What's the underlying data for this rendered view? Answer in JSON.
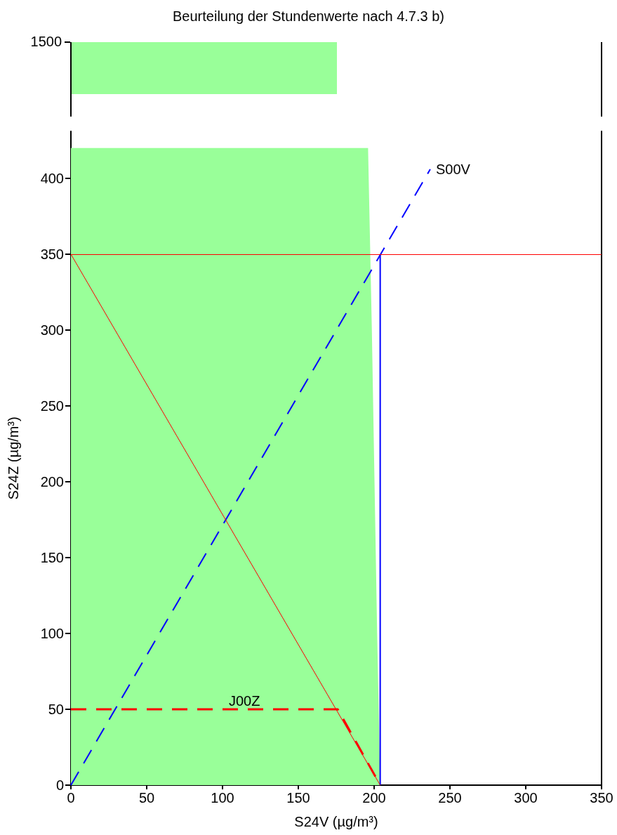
{
  "chart_data": {
    "type": "line",
    "title": "Beurteilung der Stundenwerte nach 4.7.3 b)",
    "annotations": [
      "1500"
    ],
    "xlabel": "S24V (µg/m³)",
    "ylabel": "S24Z (µg/m³)",
    "xlim": [
      0,
      350
    ],
    "xticks": [
      0,
      50,
      100,
      150,
      200,
      250,
      300,
      350
    ],
    "ylim": [
      0,
      431
    ],
    "yticks": [
      0,
      50,
      100,
      150,
      200,
      250,
      300,
      350,
      400
    ],
    "grid": false,
    "legend": false,
    "marker": "none",
    "series": [
      {
        "type": "area",
        "color": "#99ff99",
        "x": [
          0,
          204,
          202,
          198.5,
          196,
          196,
          0,
          0
        ],
        "values": [
          0,
          0,
          100,
          300,
          420,
          420,
          420,
          0
        ]
      },
      {
        "name": "S00V",
        "color": "#0000ff",
        "line_style": "dashed",
        "x": [
          0,
          237
        ],
        "values": [
          0,
          406
        ]
      },
      {
        "color": "#0000ff",
        "line_style": "solid",
        "x": [
          204,
          204
        ],
        "values": [
          0,
          350
        ]
      },
      {
        "color": "#ff0000",
        "line_style": "solid",
        "x": [
          0,
          204
        ],
        "values": [
          350,
          0
        ]
      },
      {
        "name": "J00Z",
        "color": "#ff0000",
        "line_style": "dashed",
        "x": [
          0,
          176,
          204
        ],
        "values": [
          50,
          50,
          0
        ]
      }
    ],
    "ref_lines": [
      {
        "axis": "y",
        "value": 350,
        "color": "#ff0000",
        "line_style": "solid"
      }
    ]
  }
}
